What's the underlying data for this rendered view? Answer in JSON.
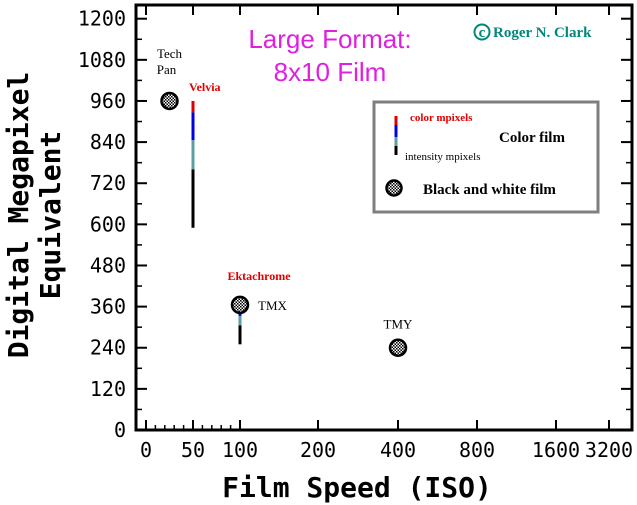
{
  "colors": {
    "color_mpixels": "#e00000",
    "blue_segment": "#0000e0",
    "teal_segment": "#5f9ea0",
    "intensity_mpixels": "#000000",
    "title": "#e020e0",
    "credit": "#00887a"
  },
  "chart_data": {
    "type": "scatter",
    "title": "Large Format:",
    "subtitle": "8x10 Film",
    "credit": "Roger N. Clark",
    "credit_symbol": "c",
    "xlabel": "Film Speed (ISO)",
    "ylabel_line1": "Digital Megapixel",
    "ylabel_line2": "Equivalent",
    "x_ticks": [
      "0",
      "50",
      "100",
      "200",
      "400",
      "800",
      "1600",
      "3200"
    ],
    "y_ticks": [
      0,
      120,
      240,
      360,
      480,
      600,
      720,
      840,
      960,
      1080,
      1200
    ],
    "ylim": [
      0,
      1240
    ],
    "grid": false,
    "legend_position": "top-right",
    "legend": {
      "color_mpixels_label": "color mpixels",
      "color_film_label": "Color film",
      "intensity_mpixels_label": "intensity mpixels",
      "bw_label": "Black and white film"
    },
    "color_films": [
      {
        "name": "Velvia",
        "iso": 50,
        "color_mpixels": 960,
        "intensity_mpixels": 590
      },
      {
        "name": "Ektachrome",
        "iso": 100,
        "color_mpixels": 370,
        "intensity_mpixels": 250
      }
    ],
    "bw_films": [
      {
        "name_lines": [
          "Tech",
          "Pan"
        ],
        "iso": 25,
        "mpixels": 960
      },
      {
        "name_lines": [
          "TMX"
        ],
        "iso": 100,
        "mpixels": 365
      },
      {
        "name_lines": [
          "TMY"
        ],
        "iso": 400,
        "mpixels": 240
      }
    ]
  }
}
